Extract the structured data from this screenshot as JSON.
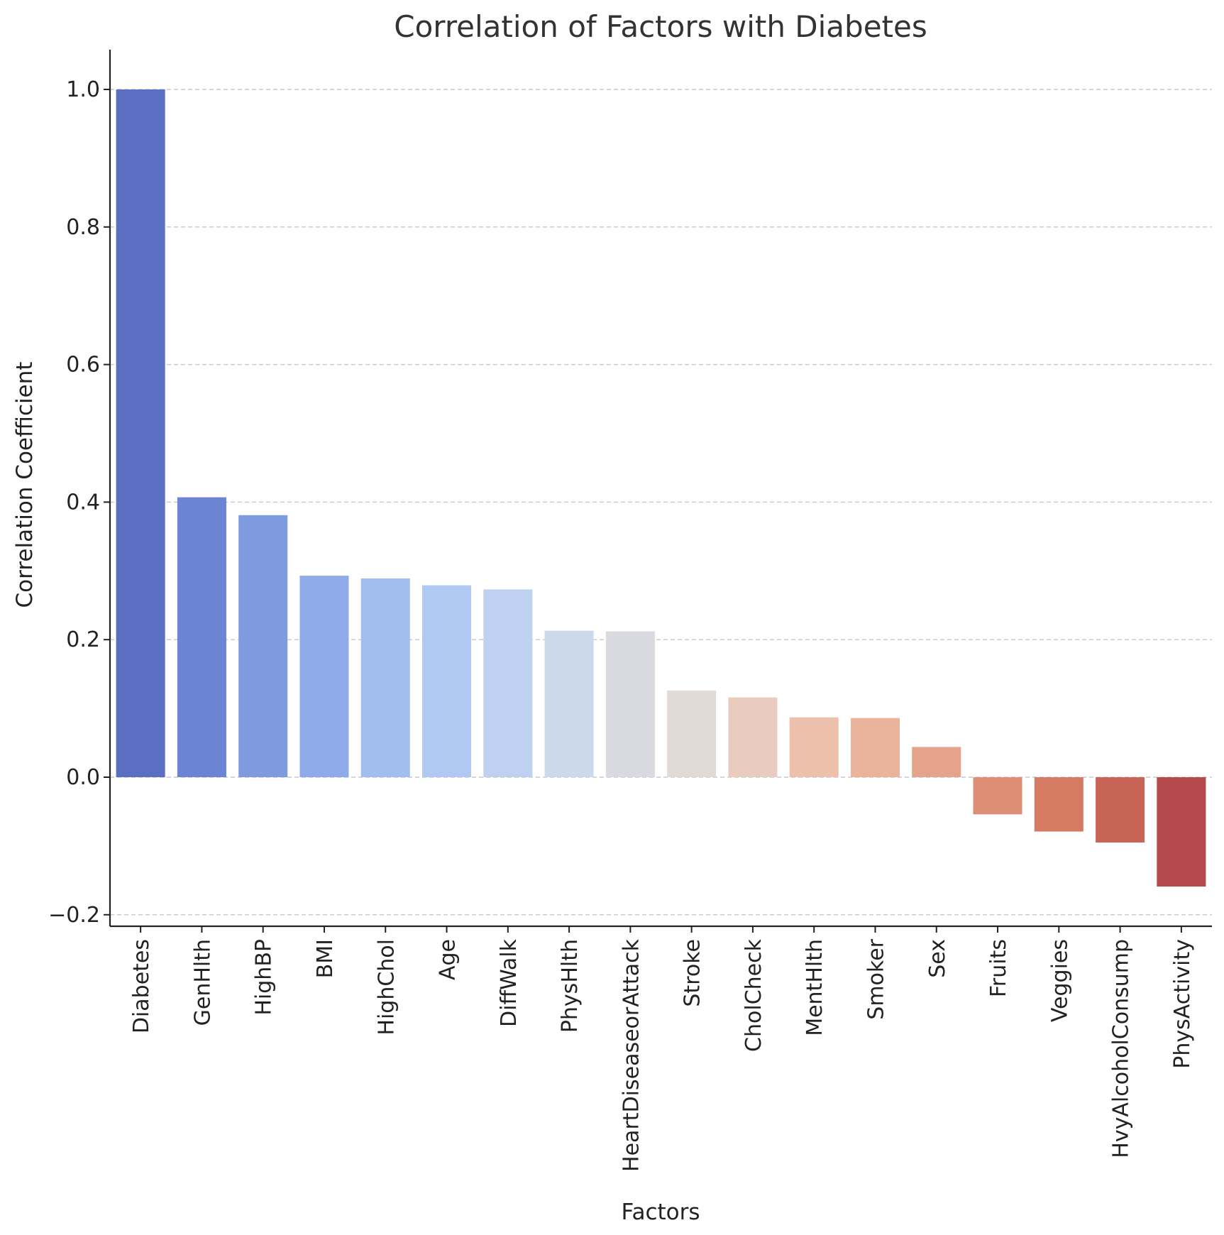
{
  "chart_data": {
    "type": "bar",
    "title": "Correlation of Factors with Diabetes",
    "xlabel": "Factors",
    "ylabel": "Correlation Coefficient",
    "ylim": [
      -0.215,
      1.06
    ],
    "yticks": [
      -0.2,
      0.0,
      0.2,
      0.4,
      0.6,
      0.8,
      1.0
    ],
    "ytick_labels": [
      "−0.2",
      "0.0",
      "0.2",
      "0.4",
      "0.6",
      "0.8",
      "1.0"
    ],
    "grid": "horizontal dashed",
    "categories": [
      "Diabetes",
      "GenHlth",
      "HighBP",
      "BMI",
      "HighChol",
      "Age",
      "DiffWalk",
      "PhysHlth",
      "HeartDiseaseorAttack",
      "Stroke",
      "CholCheck",
      "MentHlth",
      "Smoker",
      "Sex",
      "Fruits",
      "Veggies",
      "HvyAlcoholConsump",
      "PhysActivity"
    ],
    "values": [
      1.0,
      0.407,
      0.381,
      0.293,
      0.289,
      0.279,
      0.273,
      0.213,
      0.212,
      0.126,
      0.116,
      0.087,
      0.086,
      0.044,
      -0.054,
      -0.079,
      -0.095,
      -0.159
    ],
    "colors": [
      "#5b6fc2",
      "#6b84d4",
      "#7f9be0",
      "#90abe9",
      "#a2bdf0",
      "#b0c9f2",
      "#bfd1f0",
      "#ccd8eb",
      "#d8dadf",
      "#e2dad6",
      "#eaccbe",
      "#ecc0aa",
      "#eab49c",
      "#e5a38b",
      "#de8e74",
      "#d57b64",
      "#c86456",
      "#b5484a"
    ]
  }
}
